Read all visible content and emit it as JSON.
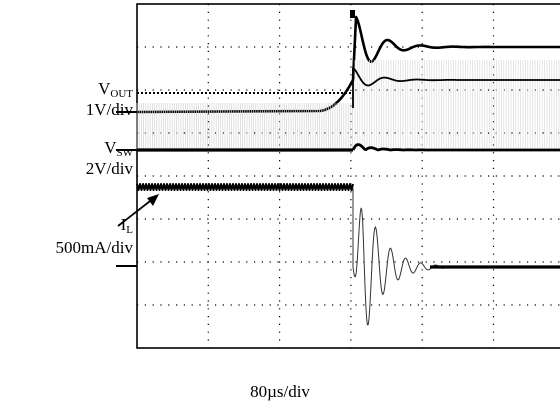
{
  "chart_data": {
    "type": "line",
    "title": "",
    "xlabel": "",
    "ylabel": "",
    "grid": true,
    "grid_divisions": {
      "x": 10,
      "y": 8
    },
    "timebase": "80µs/div",
    "channels": [
      {
        "name_main": "V",
        "name_sub": "OUT",
        "scale": "1V/div",
        "description": "output voltage step rising to regulation with ringing overshoot"
      },
      {
        "name_main": "V",
        "name_sub": "SW",
        "scale": "2V/div",
        "description": "switch node waveform, dense switching bursts"
      },
      {
        "name_main": "I",
        "name_sub": "L",
        "scale": "500mA/div",
        "description": "inductor current ripple with large negative ring then settling"
      }
    ]
  }
}
